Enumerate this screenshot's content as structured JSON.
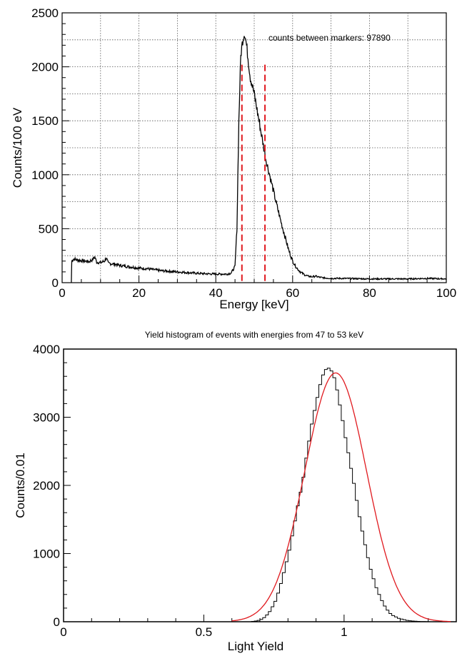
{
  "chart_data": [
    {
      "type": "line",
      "title": "",
      "xlabel": "Energy [keV]",
      "ylabel": "Counts/100 eV",
      "xlim": [
        0,
        100
      ],
      "ylim": [
        0,
        2500
      ],
      "grid": true,
      "x_ticks": [
        0,
        20,
        40,
        60,
        80,
        100
      ],
      "x_tick_labels": [
        "0",
        "20",
        "40",
        "60",
        "80",
        "100"
      ],
      "y_ticks": [
        0,
        500,
        1000,
        1500,
        2000,
        2500
      ],
      "y_tick_labels": [
        "0",
        "500",
        "1000",
        "1500",
        "2000",
        "2500"
      ],
      "annotation": "counts between markers: 97890",
      "markers": [
        {
          "name": "lower-marker",
          "x": 46.8,
          "color": "#e0191e"
        },
        {
          "name": "upper-marker",
          "x": 52.8,
          "color": "#e0191e"
        }
      ],
      "series": [
        {
          "color": "#000000",
          "x": [
            2.4,
            2.5,
            3,
            4,
            5,
            6,
            7,
            8,
            8.5,
            9,
            10,
            11,
            11.5,
            12,
            13,
            14,
            15,
            16,
            17,
            18,
            19,
            20,
            22,
            24,
            26,
            28,
            30,
            32,
            34,
            36,
            38,
            40,
            42,
            43,
            44,
            45,
            45.5,
            46,
            46.5,
            47,
            47.5,
            48,
            48.5,
            49,
            50,
            51,
            52,
            53,
            54,
            55,
            56,
            57,
            58,
            59,
            60,
            61,
            62,
            63,
            64,
            65,
            66,
            67,
            68,
            70,
            72,
            75,
            80,
            85,
            90,
            95,
            100
          ],
          "y": [
            0,
            200,
            220,
            210,
            205,
            200,
            195,
            215,
            240,
            190,
            185,
            200,
            230,
            180,
            175,
            170,
            160,
            155,
            150,
            145,
            140,
            135,
            130,
            120,
            110,
            105,
            100,
            95,
            90,
            85,
            82,
            80,
            80,
            80,
            90,
            150,
            500,
            1500,
            2100,
            2250,
            2320,
            2200,
            2050,
            1900,
            1750,
            1550,
            1350,
            1150,
            1000,
            850,
            700,
            560,
            430,
            300,
            200,
            140,
            100,
            75,
            60,
            55,
            60,
            50,
            45,
            40,
            40,
            38,
            35,
            35,
            35,
            40,
            35
          ]
        }
      ]
    },
    {
      "type": "bar",
      "title": "Yield histogram of events with energies from 47 to 53 keV",
      "xlabel": "Light Yield",
      "ylabel": "Counts/0.01",
      "xlim": [
        0,
        1.4
      ],
      "ylim": [
        0,
        4000
      ],
      "grid": false,
      "x_ticks": [
        0,
        0.5,
        1
      ],
      "x_tick_labels": [
        "0",
        "0.5",
        "1"
      ],
      "y_ticks": [
        0,
        1000,
        2000,
        3000,
        4000
      ],
      "y_tick_labels": [
        "0",
        "1000",
        "2000",
        "3000",
        "4000"
      ],
      "histogram": {
        "color": "#000000",
        "bin_width": 0.01,
        "x_start": 0.6,
        "values": [
          0,
          0,
          0,
          0,
          0,
          0,
          0,
          5,
          10,
          20,
          35,
          60,
          100,
          150,
          220,
          300,
          420,
          560,
          720,
          880,
          1050,
          1260,
          1480,
          1700,
          1900,
          2120,
          2400,
          2650,
          2900,
          3100,
          3290,
          3480,
          3620,
          3700,
          3720,
          3680,
          3580,
          3400,
          3180,
          2950,
          2700,
          2480,
          2250,
          2030,
          1780,
          1540,
          1330,
          1130,
          940,
          770,
          630,
          500,
          400,
          310,
          230,
          170,
          120,
          90,
          70,
          50,
          40,
          30,
          20,
          15,
          10,
          8,
          5,
          3,
          2,
          1,
          0,
          0,
          0,
          0,
          0,
          0,
          0,
          0
        ]
      },
      "fit": {
        "color": "#e0191e",
        "type": "gaussian",
        "amplitude": 3650,
        "mean": 0.97,
        "sigma": 0.11,
        "x_range": [
          0.6,
          1.38
        ]
      }
    }
  ]
}
